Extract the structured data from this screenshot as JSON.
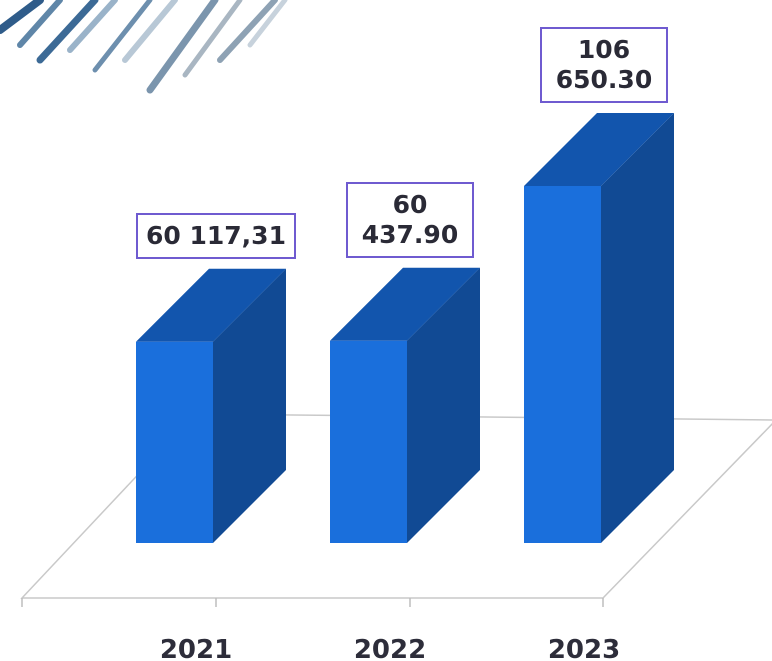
{
  "chart_data": {
    "type": "bar3d",
    "categories": [
      "2021",
      "2022",
      "2023"
    ],
    "values": [
      60117.31,
      60437.9,
      106650.3
    ],
    "value_labels": [
      "60 117,31",
      "60 437.90",
      "106 650.30"
    ],
    "color": "#1a6fdc"
  }
}
